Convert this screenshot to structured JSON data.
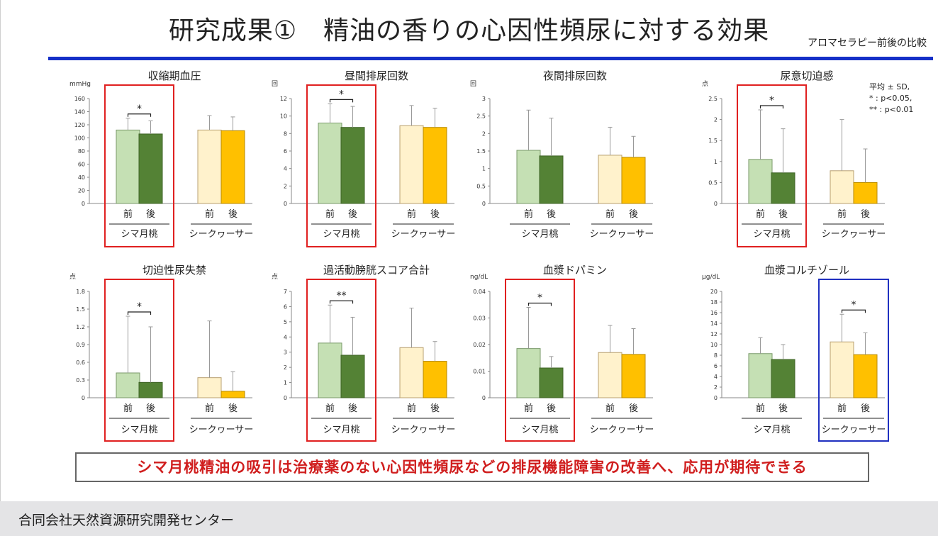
{
  "slide": {
    "title": "研究成果①　精油の香りの心因性頻尿に対する効果",
    "subtitle": "アロマセラピー前後の比較",
    "conclusion": "シマ月桃精油の吸引は治療薬のない心因性頻尿などの排尿機能障害の改善へ、応用が期待できる",
    "footer": "合同会社天然資源研究開発センター"
  },
  "legend_note": [
    "平均 ± SD,",
    "* : p<0.05,",
    "** : p<0.01"
  ],
  "colors": {
    "shima_before": "#c5e0b4",
    "shima_after": "#548235",
    "shikuwasa_before": "#fff2cc",
    "shikuwasa_after": "#ffc000",
    "highlight_red": "#e02020",
    "highlight_blue": "#2030c0",
    "rule": "#1530c8"
  },
  "chart_data": [
    {
      "type": "bar",
      "title": "収縮期血圧",
      "unit": "mmHg",
      "ylim": [
        0,
        160
      ],
      "yticks": [
        "0",
        "20",
        "40",
        "60",
        "80",
        "100",
        "120",
        "140",
        "160"
      ],
      "groups": [
        "シマ月桃",
        "シークヮーサー"
      ],
      "bar_labels": [
        "前",
        "後"
      ],
      "series": [
        {
          "name": "前",
          "values": [
            112,
            112
          ],
          "sd": [
            18,
            22
          ]
        },
        {
          "name": "後",
          "values": [
            106,
            111
          ],
          "sd": [
            20,
            21
          ]
        }
      ],
      "significance": [
        {
          "group": 0,
          "mark": "*"
        }
      ],
      "highlight": {
        "group": 0,
        "color": "red"
      }
    },
    {
      "type": "bar",
      "title": "昼間排尿回数",
      "unit": "回",
      "ylim": [
        0,
        12
      ],
      "yticks": [
        "0",
        "2",
        "4",
        "6",
        "8",
        "10",
        "12"
      ],
      "groups": [
        "シマ月桃",
        "シークヮーサー"
      ],
      "bar_labels": [
        "前",
        "後"
      ],
      "series": [
        {
          "name": "前",
          "values": [
            9.2,
            8.9
          ],
          "sd": [
            2.2,
            2.3
          ]
        },
        {
          "name": "後",
          "values": [
            8.7,
            8.7
          ],
          "sd": [
            2.4,
            2.2
          ]
        }
      ],
      "significance": [
        {
          "group": 0,
          "mark": "*"
        }
      ],
      "highlight": {
        "group": 0,
        "color": "red"
      }
    },
    {
      "type": "bar",
      "title": "夜間排尿回数",
      "unit": "回",
      "ylim": [
        0,
        3
      ],
      "yticks": [
        "0",
        "0.5",
        "1",
        "1.5",
        "2",
        "2.5",
        "3"
      ],
      "groups": [
        "シマ月桃",
        "シークヮーサー"
      ],
      "bar_labels": [
        "前",
        "後"
      ],
      "series": [
        {
          "name": "前",
          "values": [
            1.52,
            1.38
          ],
          "sd": [
            1.15,
            0.8
          ]
        },
        {
          "name": "後",
          "values": [
            1.36,
            1.32
          ],
          "sd": [
            1.08,
            0.6
          ]
        }
      ],
      "significance": [],
      "highlight": null
    },
    {
      "type": "bar",
      "title": "尿意切迫感",
      "unit": "点",
      "ylim": [
        0,
        2.5
      ],
      "yticks": [
        "0",
        "0.5",
        "1",
        "1.5",
        "2",
        "2.5"
      ],
      "groups": [
        "シマ月桃",
        "シークヮーサー"
      ],
      "bar_labels": [
        "前",
        "後"
      ],
      "series": [
        {
          "name": "前",
          "values": [
            1.05,
            0.78
          ],
          "sd": [
            1.18,
            1.22
          ]
        },
        {
          "name": "後",
          "values": [
            0.73,
            0.5
          ],
          "sd": [
            1.05,
            0.8
          ]
        }
      ],
      "significance": [
        {
          "group": 0,
          "mark": "*"
        }
      ],
      "highlight": {
        "group": 0,
        "color": "red"
      }
    },
    {
      "type": "bar",
      "title": "切迫性尿失禁",
      "unit": "点",
      "ylim": [
        0,
        1.8
      ],
      "yticks": [
        "0",
        "0.3",
        "0.6",
        "0.9",
        "1.2",
        "1.5",
        "1.8"
      ],
      "groups": [
        "シマ月桃",
        "シークヮーサー"
      ],
      "bar_labels": [
        "前",
        "後"
      ],
      "series": [
        {
          "name": "前",
          "values": [
            0.42,
            0.34
          ],
          "sd": [
            0.96,
            0.96
          ]
        },
        {
          "name": "後",
          "values": [
            0.26,
            0.11
          ],
          "sd": [
            0.94,
            0.33
          ]
        }
      ],
      "significance": [
        {
          "group": 0,
          "mark": "*"
        }
      ],
      "highlight": {
        "group": 0,
        "color": "red"
      }
    },
    {
      "type": "bar",
      "title": "過活動膀胱スコア合計",
      "unit": "点",
      "ylim": [
        0,
        7
      ],
      "yticks": [
        "0",
        "1",
        "2",
        "3",
        "4",
        "5",
        "6",
        "7"
      ],
      "groups": [
        "シマ月桃",
        "シークヮーサー"
      ],
      "bar_labels": [
        "前",
        "後"
      ],
      "series": [
        {
          "name": "前",
          "values": [
            3.6,
            3.3
          ],
          "sd": [
            2.5,
            2.6
          ]
        },
        {
          "name": "後",
          "values": [
            2.8,
            2.4
          ],
          "sd": [
            2.5,
            1.3
          ]
        }
      ],
      "significance": [
        {
          "group": 0,
          "mark": "**"
        }
      ],
      "highlight": {
        "group": 0,
        "color": "red"
      }
    },
    {
      "type": "bar",
      "title": "血漿ドパミン",
      "unit": "ng/dL",
      "ylim": [
        0,
        0.04
      ],
      "yticks": [
        "0",
        "0.01",
        "0.02",
        "0.03",
        "0.04"
      ],
      "groups": [
        "シマ月桃",
        "シークヮーサー"
      ],
      "bar_labels": [
        "前",
        "後"
      ],
      "series": [
        {
          "name": "前",
          "values": [
            0.0185,
            0.017
          ],
          "sd": [
            0.0155,
            0.0102
          ]
        },
        {
          "name": "後",
          "values": [
            0.0112,
            0.0163
          ],
          "sd": [
            0.0043,
            0.0097
          ]
        }
      ],
      "significance": [
        {
          "group": 0,
          "mark": "*"
        }
      ],
      "highlight": {
        "group": 0,
        "color": "red"
      }
    },
    {
      "type": "bar",
      "title": "血漿コルチゾール",
      "unit": "μg/dL",
      "ylim": [
        0,
        20
      ],
      "yticks": [
        "0",
        "2",
        "4",
        "6",
        "8",
        "10",
        "12",
        "14",
        "16",
        "18",
        "20"
      ],
      "groups": [
        "シマ月桃",
        "シークヮーサー"
      ],
      "bar_labels": [
        "前",
        "後"
      ],
      "series": [
        {
          "name": "前",
          "values": [
            8.3,
            10.5
          ],
          "sd": [
            3.0,
            5.2
          ]
        },
        {
          "name": "後",
          "values": [
            7.2,
            8.1
          ],
          "sd": [
            2.8,
            4.1
          ]
        }
      ],
      "significance": [
        {
          "group": 1,
          "mark": "*"
        }
      ],
      "highlight": {
        "group": 1,
        "color": "blue"
      }
    }
  ]
}
